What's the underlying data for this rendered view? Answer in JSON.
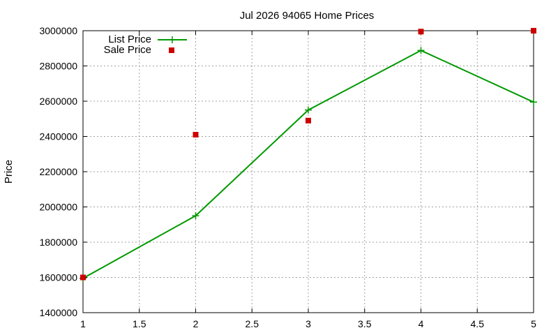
{
  "chart_data": {
    "type": "line",
    "title": "Jul 2026 94065 Home Prices",
    "xlabel": "",
    "ylabel": "Price",
    "xlim": [
      1,
      5
    ],
    "ylim": [
      1400000,
      3000000
    ],
    "xticks": [
      1,
      1.5,
      2,
      2.5,
      3,
      3.5,
      4,
      4.5,
      5
    ],
    "xtick_labels": [
      "1",
      "1.5",
      "2",
      "2.5",
      "3",
      "3.5",
      "4",
      "4.5",
      "5"
    ],
    "yticks": [
      1400000,
      1600000,
      1800000,
      2000000,
      2200000,
      2400000,
      2600000,
      2800000,
      3000000
    ],
    "ytick_labels": [
      "1400000",
      "1600000",
      "1800000",
      "2000000",
      "2200000",
      "2400000",
      "2600000",
      "2800000",
      "3000000"
    ],
    "grid": true,
    "legend_position": "top-left",
    "series": [
      {
        "name": "List Price",
        "style": "line-with-plus-markers",
        "color": "#009900",
        "x": [
          1,
          2,
          3,
          4,
          5
        ],
        "y": [
          1595000,
          1950000,
          2550000,
          2888000,
          2595000
        ]
      },
      {
        "name": "Sale Price",
        "style": "square-markers",
        "color": "#cc0000",
        "x": [
          1,
          2,
          3,
          4,
          5
        ],
        "y": [
          1600000,
          2410000,
          2490000,
          2995000,
          3000000
        ]
      }
    ]
  }
}
